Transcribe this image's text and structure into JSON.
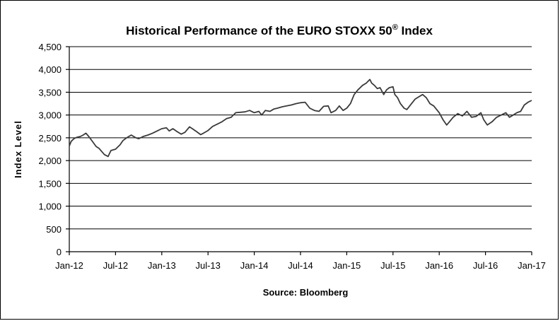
{
  "chart_data": {
    "type": "line",
    "title": "Historical Performance of the EURO STOXX 50",
    "title_superscript": "®",
    "title_suffix": " Index",
    "xlabel": "",
    "ylabel": "Index Level",
    "source": "Source:  Bloomberg",
    "ylim": [
      0,
      4500
    ],
    "ytick_values": [
      0,
      500,
      1000,
      1500,
      2000,
      2500,
      3000,
      3500,
      4000,
      4500
    ],
    "ytick_labels": [
      "0",
      "500",
      "1,000",
      "1,500",
      "2,000",
      "2,500",
      "3,000",
      "3,500",
      "4,000",
      "4,500"
    ],
    "xlim": [
      2012.0,
      2017.0
    ],
    "xtick_values": [
      2012.0,
      2012.5,
      2013.0,
      2013.5,
      2014.0,
      2014.5,
      2015.0,
      2015.5,
      2016.0,
      2016.5,
      2017.0
    ],
    "xtick_labels": [
      "Jan-12",
      "Jul-12",
      "Jan-13",
      "Jul-13",
      "Jan-14",
      "Jul-14",
      "Jan-15",
      "Jul-15",
      "Jan-16",
      "Jul-16",
      "Jan-17"
    ],
    "grid": true,
    "series": [
      {
        "name": "EURO STOXX 50 Index",
        "color": "#3a3a3a",
        "x": [
          2012.0,
          2012.02,
          2012.05,
          2012.08,
          2012.12,
          2012.15,
          2012.18,
          2012.21,
          2012.25,
          2012.29,
          2012.32,
          2012.35,
          2012.38,
          2012.42,
          2012.45,
          2012.5,
          2012.55,
          2012.58,
          2012.62,
          2012.67,
          2012.72,
          2012.75,
          2012.8,
          2012.85,
          2012.9,
          2012.95,
          2013.0,
          2013.05,
          2013.08,
          2013.12,
          2013.17,
          2013.21,
          2013.25,
          2013.3,
          2013.33,
          2013.38,
          2013.42,
          2013.45,
          2013.5,
          2013.55,
          2013.6,
          2013.65,
          2013.7,
          2013.75,
          2013.8,
          2013.85,
          2013.9,
          2013.95,
          2014.0,
          2014.05,
          2014.08,
          2014.12,
          2014.17,
          2014.21,
          2014.25,
          2014.3,
          2014.35,
          2014.4,
          2014.45,
          2014.5,
          2014.55,
          2014.6,
          2014.65,
          2014.7,
          2014.75,
          2014.8,
          2014.83,
          2014.88,
          2014.92,
          2014.96,
          2015.0,
          2015.04,
          2015.08,
          2015.12,
          2015.17,
          2015.21,
          2015.25,
          2015.27,
          2015.3,
          2015.33,
          2015.36,
          2015.4,
          2015.43,
          2015.46,
          2015.5,
          2015.52,
          2015.55,
          2015.58,
          2015.62,
          2015.65,
          2015.7,
          2015.74,
          2015.78,
          2015.82,
          2015.86,
          2015.9,
          2015.94,
          2016.0,
          2016.04,
          2016.08,
          2016.11,
          2016.15,
          2016.2,
          2016.25,
          2016.3,
          2016.35,
          2016.4,
          2016.45,
          2016.48,
          2016.52,
          2016.57,
          2016.62,
          2016.67,
          2016.72,
          2016.76,
          2016.8,
          2016.84,
          2016.88,
          2016.92,
          2016.96,
          2017.0
        ],
        "values": [
          2320,
          2420,
          2480,
          2510,
          2530,
          2560,
          2600,
          2530,
          2420,
          2310,
          2270,
          2200,
          2130,
          2090,
          2220,
          2250,
          2350,
          2440,
          2500,
          2560,
          2500,
          2480,
          2530,
          2560,
          2600,
          2650,
          2700,
          2720,
          2650,
          2700,
          2630,
          2580,
          2620,
          2740,
          2700,
          2630,
          2570,
          2600,
          2660,
          2750,
          2800,
          2850,
          2920,
          2950,
          3050,
          3060,
          3070,
          3100,
          3050,
          3080,
          3000,
          3100,
          3080,
          3130,
          3150,
          3180,
          3200,
          3220,
          3250,
          3270,
          3280,
          3150,
          3100,
          3080,
          3190,
          3200,
          3050,
          3100,
          3200,
          3100,
          3150,
          3250,
          3450,
          3550,
          3650,
          3700,
          3780,
          3700,
          3650,
          3580,
          3600,
          3450,
          3550,
          3600,
          3620,
          3450,
          3380,
          3250,
          3150,
          3120,
          3250,
          3350,
          3400,
          3450,
          3380,
          3250,
          3200,
          3050,
          2900,
          2780,
          2850,
          2950,
          3030,
          2980,
          3080,
          2950,
          2970,
          3050,
          2900,
          2780,
          2850,
          2950,
          3000,
          3050,
          2950,
          3000,
          3050,
          3080,
          3220,
          3280,
          3320
        ]
      }
    ]
  }
}
